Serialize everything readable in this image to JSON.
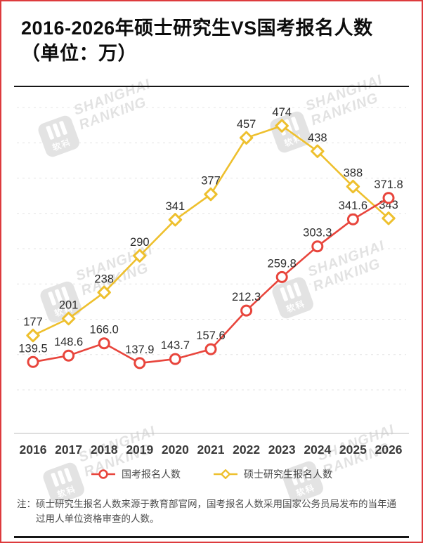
{
  "title": {
    "line1": "2016-2026年硕士研究生VS国考报名人数",
    "line2": "（单位：万）"
  },
  "watermark": {
    "logo_text": "软科",
    "line1": "SHANGHAI",
    "line2": "RANKING"
  },
  "chart_data": {
    "type": "line",
    "title": "2016-2026年硕士研究生VS国考报名人数（单位：万）",
    "unit": "万",
    "categories": [
      "2016",
      "2017",
      "2018",
      "2019",
      "2020",
      "2021",
      "2022",
      "2023",
      "2024",
      "2025",
      "2026"
    ],
    "series": [
      {
        "name": "国考报名人数",
        "marker": "circle",
        "color": "#e8453c",
        "values": [
          139.5,
          148.6,
          166.0,
          137.9,
          143.7,
          157.6,
          212.3,
          259.8,
          303.3,
          341.6,
          371.8
        ],
        "labels": [
          "139.5",
          "148.6",
          "166.0",
          "137.9",
          "143.7",
          "157.6",
          "212.3",
          "259.8",
          "303.3",
          "341.6",
          "371.8"
        ]
      },
      {
        "name": "硕士研究生报名人数",
        "marker": "diamond",
        "color": "#eec02e",
        "values": [
          177,
          201,
          238,
          290,
          341,
          377,
          457,
          474,
          438,
          388,
          343
        ],
        "labels": [
          "177",
          "201",
          "238",
          "290",
          "341",
          "377",
          "457",
          "474",
          "438",
          "388",
          "343"
        ]
      }
    ],
    "ylim": [
      100,
      530
    ],
    "grid": {
      "horizontal_dashed": [
        100,
        150,
        200,
        250,
        300,
        350,
        400,
        450,
        500
      ]
    },
    "legend_position": "bottom",
    "xlabel": "",
    "ylabel": ""
  },
  "note": {
    "prefix": "注：",
    "text": "硕士研究生报名人数来源于教育部官网，国考报名人数采用国家公务员局发布的当年通过用人单位资格审查的人数。"
  }
}
